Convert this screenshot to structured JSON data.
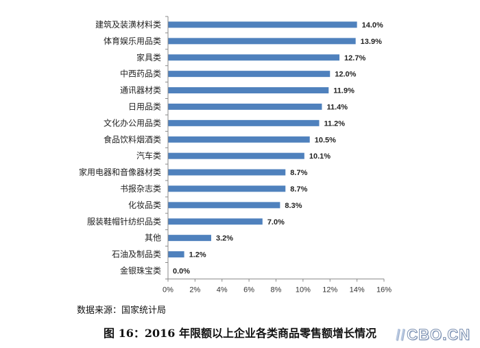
{
  "chart_data": {
    "type": "bar",
    "orientation": "horizontal",
    "categories": [
      "建筑及装潢材料类",
      "体育娱乐用品类",
      "家具类",
      "中西药品类",
      "通讯器材类",
      "日用品类",
      "文化办公用品类",
      "食品饮料烟酒类",
      "汽车类",
      "家用电器和音像器材类",
      "书报杂志类",
      "化妆品类",
      "服装鞋帽针纺织品类",
      "其他",
      "石油及制品类",
      "金银珠宝类"
    ],
    "values": [
      14.0,
      13.9,
      12.7,
      12.0,
      11.9,
      11.4,
      11.2,
      10.5,
      10.1,
      8.7,
      8.7,
      8.3,
      7.0,
      3.2,
      1.2,
      0.0
    ],
    "value_labels": [
      "14.0%",
      "13.9%",
      "12.7%",
      "12.0%",
      "11.9%",
      "11.4%",
      "11.2%",
      "10.5%",
      "10.1%",
      "8.7%",
      "8.7%",
      "8.3%",
      "7.0%",
      "3.2%",
      "1.2%",
      "0.0%"
    ],
    "xticks": [
      "0%",
      "2%",
      "4%",
      "6%",
      "8%",
      "10%",
      "12%",
      "14%",
      "16%"
    ],
    "xlim": [
      0,
      16
    ],
    "grid": false,
    "bar_color": "#4f81bd",
    "title": "图 16：2016 年限额以上企业各类商品零售额增长情况",
    "source": "数据来源：国家统计局"
  },
  "watermark": "CBO.CN"
}
